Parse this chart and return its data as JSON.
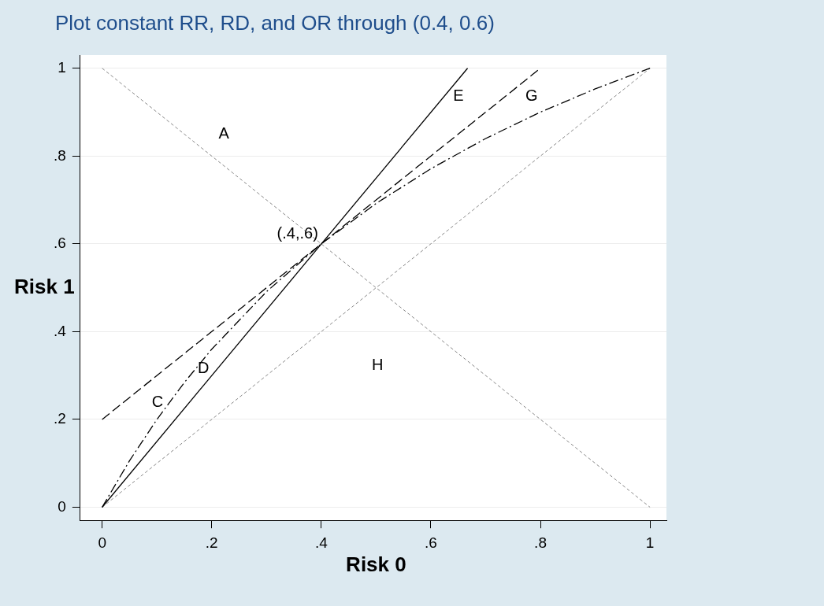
{
  "chart_data": {
    "type": "line",
    "title": "Plot constant RR, RD, and OR through (0.4, 0.6)",
    "xlabel": "Risk 0",
    "ylabel": "Risk 1",
    "xlim": [
      -0.04,
      1.03
    ],
    "ylim": [
      -0.03,
      1.03
    ],
    "xticks": [
      0,
      {
        "value": 0.2,
        "label": ".2"
      },
      {
        "value": 0.4,
        "label": ".4"
      },
      {
        "value": 0.6,
        "label": ".6"
      },
      {
        "value": 0.8,
        "label": ".8"
      },
      1
    ],
    "yticks": [
      0,
      {
        "value": 0.2,
        "label": ".2"
      },
      {
        "value": 0.4,
        "label": ".4"
      },
      {
        "value": 0.6,
        "label": ".6"
      },
      {
        "value": 0.8,
        "label": ".8"
      },
      1
    ],
    "grid": "y",
    "legend": false,
    "marker": "none",
    "series": [
      {
        "color": "#000000",
        "line_style": "solid",
        "x": [
          0,
          0.667
        ],
        "values": [
          0,
          1
        ]
      },
      {
        "color": "#000000",
        "line_style": "dashed",
        "x": [
          0,
          0.8
        ],
        "values": [
          0.2,
          1
        ]
      },
      {
        "color": "#000000",
        "line_style": "dashdot",
        "x": [
          0,
          0.05,
          0.1,
          0.15,
          0.2,
          0.3,
          0.4,
          0.5,
          0.6,
          0.7,
          0.8,
          0.9,
          1
        ],
        "values": [
          0,
          0.106,
          0.2,
          0.284,
          0.36,
          0.491,
          0.6,
          0.692,
          0.771,
          0.84,
          0.9,
          0.953,
          1
        ]
      },
      {
        "color": "#888888",
        "line_style": "dotted",
        "x": [
          0,
          1
        ],
        "values": [
          0,
          1
        ]
      },
      {
        "color": "#888888",
        "line_style": "dotted",
        "x": [
          0,
          1
        ],
        "values": [
          1,
          0
        ]
      }
    ],
    "annotations": [
      "A",
      "E",
      "G",
      {
        "text": "(.4,.6)",
        "x": 0.4,
        "y": 0.6
      },
      "D",
      "C",
      "H"
    ]
  }
}
